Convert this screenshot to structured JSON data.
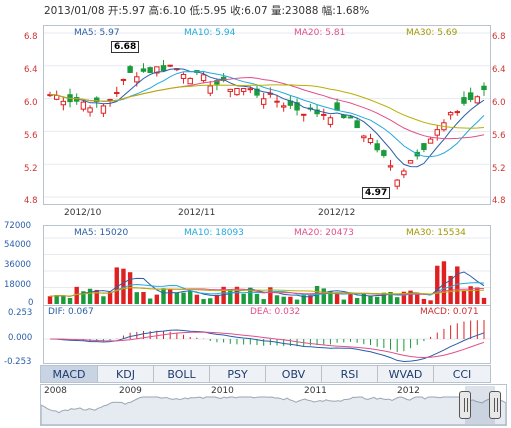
{
  "header": {
    "date": "2013/01/08",
    "open_label": "开:",
    "open": "5.97",
    "high_label": "高:",
    "high": "6.10",
    "low_label": "低:",
    "low": "5.95",
    "close_label": "收:",
    "close": "6.07",
    "vol_label": "量:",
    "vol": "23088",
    "chg_label": "幅:",
    "chg": "1.68%"
  },
  "kline": {
    "ma5": "MA5: 5.97",
    "ma10": "MA10: 5.94",
    "ma20": "MA20: 5.81",
    "ma30": "MA30: 5.69",
    "high_marker": "6.68",
    "low_marker": "4.97",
    "y_ticks": [
      "6.8",
      "6.4",
      "6.0",
      "5.6",
      "5.2",
      "4.8"
    ],
    "x_ticks": [
      "2012/10",
      "2012/11",
      "2012/12"
    ]
  },
  "volume": {
    "ma5": "MA5: 15020",
    "ma10": "MA10: 18093",
    "ma20": "MA20: 20473",
    "ma30": "MA30: 15534",
    "y_ticks": [
      "72000",
      "54000",
      "36000",
      "18000",
      "0"
    ]
  },
  "macd": {
    "dif": "DIF: 0.067",
    "dea": "DEA: 0.032",
    "macd": "MACD: 0.071",
    "y_ticks": [
      "0.253",
      "0.000",
      "-0.253"
    ]
  },
  "tabs": [
    "MACD",
    "KDJ",
    "BOLL",
    "PSY",
    "OBV",
    "RSI",
    "WVAD",
    "CCI"
  ],
  "navigator": {
    "years": [
      "2008",
      "2009",
      "2010",
      "2011",
      "2012"
    ]
  },
  "colors": {
    "up": "#e02020",
    "down": "#1a9a3a",
    "ma5": "#2a5ea8",
    "ma10": "#22aadd",
    "ma20": "#e0508a",
    "ma30": "#b8b000",
    "price_text": "#d03030",
    "border": "#b9c3cf"
  }
}
